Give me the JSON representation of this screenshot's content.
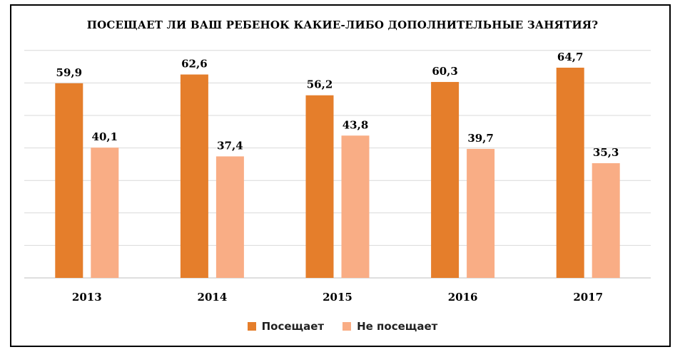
{
  "chart_data": {
    "type": "bar",
    "title": "ПОСЕЩАЕТ ЛИ ВАШ РЕБЕНОК КАКИЕ-ЛИБО ДОПОЛНИТЕЛЬНЫЕ ЗАНЯТИЯ?",
    "categories": [
      "2013",
      "2014",
      "2015",
      "2016",
      "2017"
    ],
    "series": [
      {
        "name": "Посещает",
        "values": [
          59.9,
          62.6,
          56.2,
          60.3,
          64.7
        ],
        "labels": [
          "59,9",
          "62,6",
          "56,2",
          "60,3",
          "64,7"
        ],
        "color": "#E57E2B"
      },
      {
        "name": "Не посещает",
        "values": [
          40.1,
          37.4,
          43.8,
          39.7,
          35.3
        ],
        "labels": [
          "40,1",
          "37,4",
          "43,8",
          "39,7",
          "35,3"
        ],
        "color": "#F9AD85"
      }
    ],
    "ylim": [
      0,
      70
    ],
    "grid": true,
    "legend": "bottom"
  }
}
